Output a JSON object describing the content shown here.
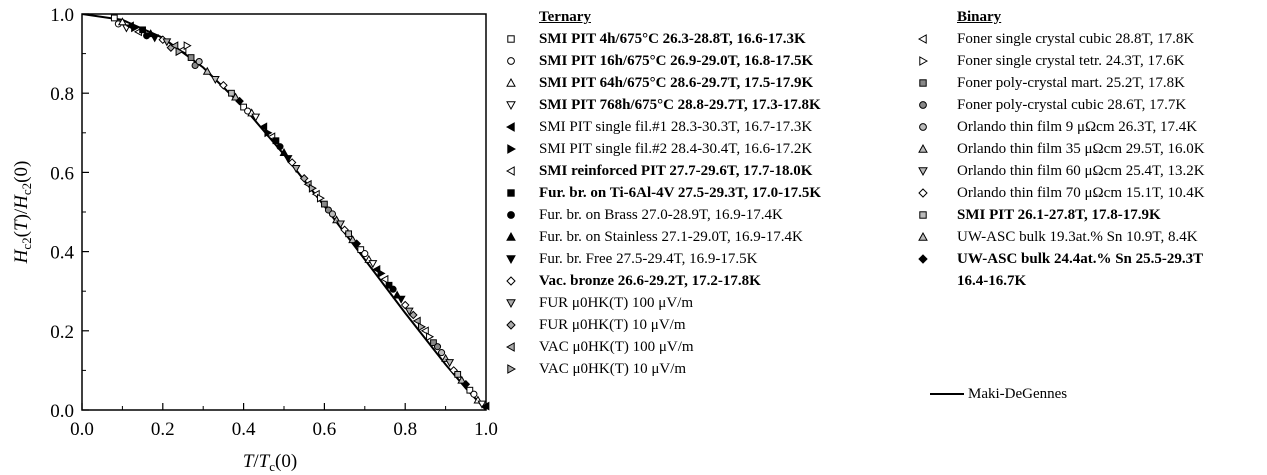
{
  "chart_data": {
    "type": "scatter",
    "xlabel": "T/T_c(0)",
    "ylabel": "H_c2(T)/H_c2(0)",
    "xlim": [
      0.0,
      1.0
    ],
    "ylim": [
      0.0,
      1.0
    ],
    "x_ticks": [
      "0.0",
      "0.2",
      "0.4",
      "0.6",
      "0.8",
      "1.0"
    ],
    "y_ticks": [
      "0.0",
      "0.2",
      "0.4",
      "0.6",
      "0.8",
      "1.0"
    ],
    "grid": false,
    "fit": {
      "name": "Maki-DeGennes",
      "x": [
        0.0,
        0.1,
        0.2,
        0.3,
        0.4,
        0.5,
        0.6,
        0.7,
        0.8,
        0.9,
        0.95,
        1.0
      ],
      "y": [
        1.0,
        0.985,
        0.94,
        0.865,
        0.765,
        0.645,
        0.515,
        0.38,
        0.245,
        0.115,
        0.055,
        0.0
      ]
    },
    "groups": [
      {
        "title": "Ternary",
        "series": [
          {
            "name": "SMI PIT 4h/675°C 26.3-28.8T, 16.6-17.3K",
            "bold": true,
            "marker": "square",
            "fill": "#ffffff"
          },
          {
            "name": "SMI PIT 16h/675°C 26.9-29.0T, 16.8-17.5K",
            "bold": true,
            "marker": "circle",
            "fill": "#ffffff"
          },
          {
            "name": "SMI PIT 64h/675°C 28.6-29.7T, 17.5-17.9K",
            "bold": true,
            "marker": "triangle-up",
            "fill": "#ffffff"
          },
          {
            "name": "SMI PIT 768h/675°C 28.8-29.7T, 17.3-17.8K",
            "bold": true,
            "marker": "triangle-down",
            "fill": "#ffffff"
          },
          {
            "name": "SMI PIT single fil.#1 28.3-30.3T, 16.7-17.3K",
            "bold": false,
            "marker": "triangle-left",
            "fill": "#000000"
          },
          {
            "name": "SMI PIT single fil.#2 28.4-30.4T, 16.6-17.2K",
            "bold": false,
            "marker": "triangle-right",
            "fill": "#000000"
          },
          {
            "name": "SMI reinforced PIT 27.7-29.6T, 17.7-18.0K",
            "bold": true,
            "marker": "triangle-left",
            "fill": "#ffffff"
          },
          {
            "name": "Fur. br. on Ti-6Al-4V 27.5-29.3T, 17.0-17.5K",
            "bold": true,
            "marker": "square",
            "fill": "#000000"
          },
          {
            "name": "Fur. br. on Brass 27.0-28.9T, 16.9-17.4K",
            "bold": false,
            "marker": "circle",
            "fill": "#000000"
          },
          {
            "name": "Fur. br. on Stainless 27.1-29.0T, 16.9-17.4K",
            "bold": false,
            "marker": "triangle-up",
            "fill": "#000000"
          },
          {
            "name": "Fur. br. Free 27.5-29.4T, 16.9-17.5K",
            "bold": false,
            "marker": "triangle-down",
            "fill": "#000000"
          },
          {
            "name": "Vac. bronze 26.6-29.2T, 17.2-17.8K",
            "bold": true,
            "marker": "diamond",
            "fill": "#ffffff"
          },
          {
            "name": "FUR μ0HK(T) 100 μV/m",
            "bold": false,
            "marker": "triangle-down",
            "fill": "#aaaaaa"
          },
          {
            "name": "FUR μ0HK(T) 10 μV/m",
            "bold": false,
            "marker": "diamond",
            "fill": "#aaaaaa"
          },
          {
            "name": "VAC μ0HK(T) 100 μV/m",
            "bold": false,
            "marker": "triangle-left",
            "fill": "#aaaaaa"
          },
          {
            "name": "VAC μ0HK(T) 10 μV/m",
            "bold": false,
            "marker": "triangle-right",
            "fill": "#aaaaaa"
          }
        ]
      },
      {
        "title": "Binary",
        "series": [
          {
            "name": "Foner single crystal cubic 28.8T, 17.8K",
            "bold": false,
            "marker": "triangle-left",
            "fill": "#ffffff"
          },
          {
            "name": "Foner single crystal tetr. 24.3T, 17.6K",
            "bold": false,
            "marker": "triangle-right",
            "fill": "#ffffff"
          },
          {
            "name": "Foner poly-crystal mart. 25.2T, 17.8K",
            "bold": false,
            "marker": "square",
            "fill": "#888888"
          },
          {
            "name": "Foner poly-crystal cubic 28.6T, 17.7K",
            "bold": false,
            "marker": "circle",
            "fill": "#888888"
          },
          {
            "name": "Orlando thin film 9 μΩcm 26.3T, 17.4K",
            "bold": false,
            "marker": "circle",
            "fill": "#bbbbbb"
          },
          {
            "name": "Orlando thin film 35 μΩcm 29.5T, 16.0K",
            "bold": false,
            "marker": "triangle-up",
            "fill": "#bbbbbb"
          },
          {
            "name": "Orlando thin film 60 μΩcm 25.4T, 13.2K",
            "bold": false,
            "marker": "triangle-down",
            "fill": "#bbbbbb"
          },
          {
            "name": "Orlando thin film 70 μΩcm 15.1T, 10.4K",
            "bold": false,
            "marker": "diamond",
            "fill": "#ffffff"
          },
          {
            "name": "SMI PIT 26.1-27.8T, 17.8-17.9K",
            "bold": true,
            "marker": "square",
            "fill": "#bbbbbb"
          },
          {
            "name": "UW-ASC bulk 19.3at.% Sn 10.9T, 8.4K",
            "bold": false,
            "marker": "triangle-up",
            "fill": "#bbbbbb"
          },
          {
            "name": "UW-ASC bulk 24.4at.% Sn 25.5-29.3T",
            "name_wrap": "16.4-16.7K",
            "bold": true,
            "marker": "diamond",
            "fill": "#000000"
          }
        ]
      }
    ],
    "points": [
      {
        "x": 0.08,
        "y": 0.99
      },
      {
        "x": 0.09,
        "y": 0.975
      },
      {
        "x": 0.1,
        "y": 0.98
      },
      {
        "x": 0.11,
        "y": 0.965
      },
      {
        "x": 0.12,
        "y": 0.97
      },
      {
        "x": 0.13,
        "y": 0.965
      },
      {
        "x": 0.14,
        "y": 0.955
      },
      {
        "x": 0.15,
        "y": 0.96
      },
      {
        "x": 0.16,
        "y": 0.945
      },
      {
        "x": 0.17,
        "y": 0.95
      },
      {
        "x": 0.18,
        "y": 0.94
      },
      {
        "x": 0.2,
        "y": 0.935
      },
      {
        "x": 0.21,
        "y": 0.93
      },
      {
        "x": 0.22,
        "y": 0.915
      },
      {
        "x": 0.23,
        "y": 0.92
      },
      {
        "x": 0.24,
        "y": 0.905
      },
      {
        "x": 0.25,
        "y": 0.91
      },
      {
        "x": 0.26,
        "y": 0.92
      },
      {
        "x": 0.27,
        "y": 0.89
      },
      {
        "x": 0.28,
        "y": 0.87
      },
      {
        "x": 0.29,
        "y": 0.88
      },
      {
        "x": 0.31,
        "y": 0.855
      },
      {
        "x": 0.33,
        "y": 0.835
      },
      {
        "x": 0.35,
        "y": 0.82
      },
      {
        "x": 0.37,
        "y": 0.8
      },
      {
        "x": 0.38,
        "y": 0.79
      },
      {
        "x": 0.39,
        "y": 0.78
      },
      {
        "x": 0.4,
        "y": 0.765
      },
      {
        "x": 0.41,
        "y": 0.755
      },
      {
        "x": 0.42,
        "y": 0.75
      },
      {
        "x": 0.43,
        "y": 0.74
      },
      {
        "x": 0.45,
        "y": 0.715
      },
      {
        "x": 0.46,
        "y": 0.7
      },
      {
        "x": 0.47,
        "y": 0.69
      },
      {
        "x": 0.48,
        "y": 0.68
      },
      {
        "x": 0.49,
        "y": 0.665
      },
      {
        "x": 0.5,
        "y": 0.65
      },
      {
        "x": 0.51,
        "y": 0.635
      },
      {
        "x": 0.52,
        "y": 0.625
      },
      {
        "x": 0.53,
        "y": 0.61
      },
      {
        "x": 0.55,
        "y": 0.585
      },
      {
        "x": 0.56,
        "y": 0.57
      },
      {
        "x": 0.57,
        "y": 0.56
      },
      {
        "x": 0.58,
        "y": 0.545
      },
      {
        "x": 0.59,
        "y": 0.535
      },
      {
        "x": 0.6,
        "y": 0.52
      },
      {
        "x": 0.61,
        "y": 0.505
      },
      {
        "x": 0.62,
        "y": 0.495
      },
      {
        "x": 0.63,
        "y": 0.48
      },
      {
        "x": 0.64,
        "y": 0.47
      },
      {
        "x": 0.65,
        "y": 0.455
      },
      {
        "x": 0.66,
        "y": 0.445
      },
      {
        "x": 0.67,
        "y": 0.43
      },
      {
        "x": 0.68,
        "y": 0.42
      },
      {
        "x": 0.69,
        "y": 0.405
      },
      {
        "x": 0.7,
        "y": 0.395
      },
      {
        "x": 0.71,
        "y": 0.38
      },
      {
        "x": 0.72,
        "y": 0.37
      },
      {
        "x": 0.73,
        "y": 0.355
      },
      {
        "x": 0.74,
        "y": 0.345
      },
      {
        "x": 0.75,
        "y": 0.33
      },
      {
        "x": 0.76,
        "y": 0.315
      },
      {
        "x": 0.77,
        "y": 0.305
      },
      {
        "x": 0.78,
        "y": 0.29
      },
      {
        "x": 0.79,
        "y": 0.28
      },
      {
        "x": 0.8,
        "y": 0.265
      },
      {
        "x": 0.81,
        "y": 0.25
      },
      {
        "x": 0.82,
        "y": 0.24
      },
      {
        "x": 0.83,
        "y": 0.225
      },
      {
        "x": 0.84,
        "y": 0.21
      },
      {
        "x": 0.85,
        "y": 0.2
      },
      {
        "x": 0.86,
        "y": 0.185
      },
      {
        "x": 0.87,
        "y": 0.17
      },
      {
        "x": 0.88,
        "y": 0.16
      },
      {
        "x": 0.89,
        "y": 0.145
      },
      {
        "x": 0.9,
        "y": 0.13
      },
      {
        "x": 0.91,
        "y": 0.12
      },
      {
        "x": 0.92,
        "y": 0.1
      },
      {
        "x": 0.93,
        "y": 0.09
      },
      {
        "x": 0.94,
        "y": 0.075
      },
      {
        "x": 0.95,
        "y": 0.065
      },
      {
        "x": 0.96,
        "y": 0.05
      },
      {
        "x": 0.97,
        "y": 0.04
      },
      {
        "x": 0.98,
        "y": 0.025
      },
      {
        "x": 0.99,
        "y": 0.015
      },
      {
        "x": 1.0,
        "y": 0.01
      }
    ]
  }
}
